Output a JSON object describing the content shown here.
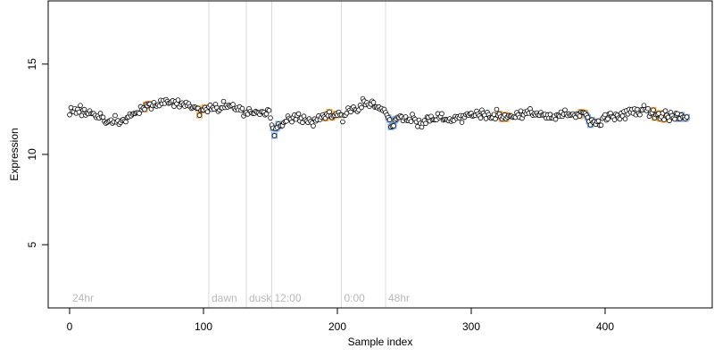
{
  "chart_data": {
    "type": "scatter",
    "xlabel": "Sample index",
    "ylabel": "Expression",
    "xlim": [
      -16,
      480
    ],
    "ylim": [
      1.5,
      18.5
    ],
    "x_ticks": [
      0,
      100,
      200,
      300,
      400
    ],
    "y_ticks": [
      5,
      10,
      15
    ],
    "grid": false,
    "n_points": 462,
    "point_style": {
      "fill": "#ffffff",
      "stroke": "#000000"
    },
    "highlight_colors": {
      "orange": "#f0a13a",
      "blue": "#6f9fd8"
    },
    "period_lines": [
      {
        "x": 0,
        "label": "24hr",
        "draw_line": false
      },
      {
        "x": 104,
        "label": "dawn",
        "draw_line": true
      },
      {
        "x": 132,
        "label": "dusk",
        "draw_line": true
      },
      {
        "x": 151,
        "label": "12:00",
        "draw_line": true
      },
      {
        "x": 203,
        "label": "0:00",
        "draw_line": true
      },
      {
        "x": 236,
        "label": "48hr",
        "draw_line": true
      }
    ],
    "trend_knots": [
      [
        0,
        12.4
      ],
      [
        10,
        12.4
      ],
      [
        20,
        12.2
      ],
      [
        30,
        11.8
      ],
      [
        40,
        11.9
      ],
      [
        48,
        12.2
      ],
      [
        55,
        12.6
      ],
      [
        65,
        12.8
      ],
      [
        75,
        12.9
      ],
      [
        85,
        12.9
      ],
      [
        92,
        12.6
      ],
      [
        100,
        12.4
      ],
      [
        110,
        12.6
      ],
      [
        120,
        12.7
      ],
      [
        130,
        12.4
      ],
      [
        140,
        12.3
      ],
      [
        148,
        12.3
      ],
      [
        153,
        11.3
      ],
      [
        160,
        11.8
      ],
      [
        170,
        12.0
      ],
      [
        180,
        11.8
      ],
      [
        190,
        12.0
      ],
      [
        198,
        12.3
      ],
      [
        205,
        12.1
      ],
      [
        210,
        12.4
      ],
      [
        220,
        12.8
      ],
      [
        230,
        12.6
      ],
      [
        237,
        12.3
      ],
      [
        240,
        11.6
      ],
      [
        248,
        12.2
      ],
      [
        255,
        11.9
      ],
      [
        265,
        11.8
      ],
      [
        275,
        12.0
      ],
      [
        285,
        11.9
      ],
      [
        300,
        12.2
      ],
      [
        315,
        12.2
      ],
      [
        330,
        12.1
      ],
      [
        345,
        12.3
      ],
      [
        360,
        12.0
      ],
      [
        375,
        12.3
      ],
      [
        385,
        12.2
      ],
      [
        392,
        11.7
      ],
      [
        400,
        12.0
      ],
      [
        410,
        12.1
      ],
      [
        420,
        12.4
      ],
      [
        430,
        12.5
      ],
      [
        440,
        12.2
      ],
      [
        450,
        12.2
      ],
      [
        461,
        12.1
      ]
    ],
    "noise_amplitude": 0.35,
    "highlight_ranges": [
      {
        "from": 55,
        "to": 60,
        "color": "orange"
      },
      {
        "from": 96,
        "to": 102,
        "color": "orange"
      },
      {
        "from": 152,
        "to": 157,
        "color": "blue"
      },
      {
        "from": 190,
        "to": 200,
        "color": "orange"
      },
      {
        "from": 238,
        "to": 244,
        "color": "blue"
      },
      {
        "from": 320,
        "to": 328,
        "color": "orange"
      },
      {
        "from": 380,
        "to": 386,
        "color": "orange"
      },
      {
        "from": 386,
        "to": 392,
        "color": "blue"
      },
      {
        "from": 436,
        "to": 444,
        "color": "orange"
      },
      {
        "from": 455,
        "to": 461,
        "color": "blue"
      }
    ]
  }
}
